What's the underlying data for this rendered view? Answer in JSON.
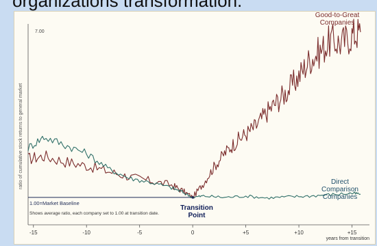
{
  "slide": {
    "caption": "organizations transformation."
  },
  "chart_data": {
    "type": "line",
    "title": "",
    "xlabel": "years from transition",
    "ylabel": "ratio of cumulative stock returns to general market",
    "xlim": [
      -15.5,
      16
    ],
    "ylim": [
      0.4,
      7.2
    ],
    "x_ticks": [
      -15,
      -10,
      -5,
      0,
      5,
      10,
      15
    ],
    "x_tick_labels": [
      "-15",
      "-10",
      "-5",
      "0",
      "+5",
      "+10",
      "+15"
    ],
    "y_tick_top": "7.00",
    "baseline_value": 1.0,
    "baseline_label": "1.00=Market Baseline",
    "note": "Shows average ratio, each company set to 1.00 at transition date.",
    "transition_label": "Transition Point",
    "grid": false,
    "series": [
      {
        "name": "Good-to-Great Companies",
        "color": "#7a2b2b",
        "points": [
          [
            -15.5,
            2.4
          ],
          [
            -14,
            2.5
          ],
          [
            -12,
            2.3
          ],
          [
            -10,
            2.15
          ],
          [
            -8,
            1.95
          ],
          [
            -6,
            1.75
          ],
          [
            -4,
            1.6
          ],
          [
            -2,
            1.45
          ],
          [
            -1,
            1.25
          ],
          [
            0,
            1.0
          ],
          [
            1,
            1.5
          ],
          [
            2,
            2.1
          ],
          [
            3,
            2.6
          ],
          [
            4,
            3.0
          ],
          [
            5,
            3.3
          ],
          [
            6,
            3.6
          ],
          [
            7,
            4.1
          ],
          [
            8,
            4.5
          ],
          [
            9,
            4.9
          ],
          [
            10,
            5.4
          ],
          [
            11,
            6.0
          ],
          [
            12,
            6.3
          ],
          [
            13,
            6.7
          ],
          [
            14,
            6.6
          ],
          [
            15,
            6.9
          ],
          [
            15.8,
            7.0
          ]
        ]
      },
      {
        "name": "Direct Comparison Companies",
        "color": "#2f6f68",
        "points": [
          [
            -15.5,
            2.8
          ],
          [
            -14,
            3.2
          ],
          [
            -12,
            2.9
          ],
          [
            -10,
            2.6
          ],
          [
            -8,
            2.05
          ],
          [
            -6,
            1.7
          ],
          [
            -4,
            1.55
          ],
          [
            -2,
            1.35
          ],
          [
            -1,
            1.2
          ],
          [
            0,
            1.0
          ],
          [
            1,
            1.05
          ],
          [
            3,
            1.0
          ],
          [
            5,
            1.05
          ],
          [
            7,
            0.98
          ],
          [
            9,
            1.02
          ],
          [
            11,
            1.05
          ],
          [
            13,
            1.1
          ],
          [
            15,
            1.15
          ],
          [
            15.8,
            1.12
          ]
        ]
      }
    ]
  }
}
